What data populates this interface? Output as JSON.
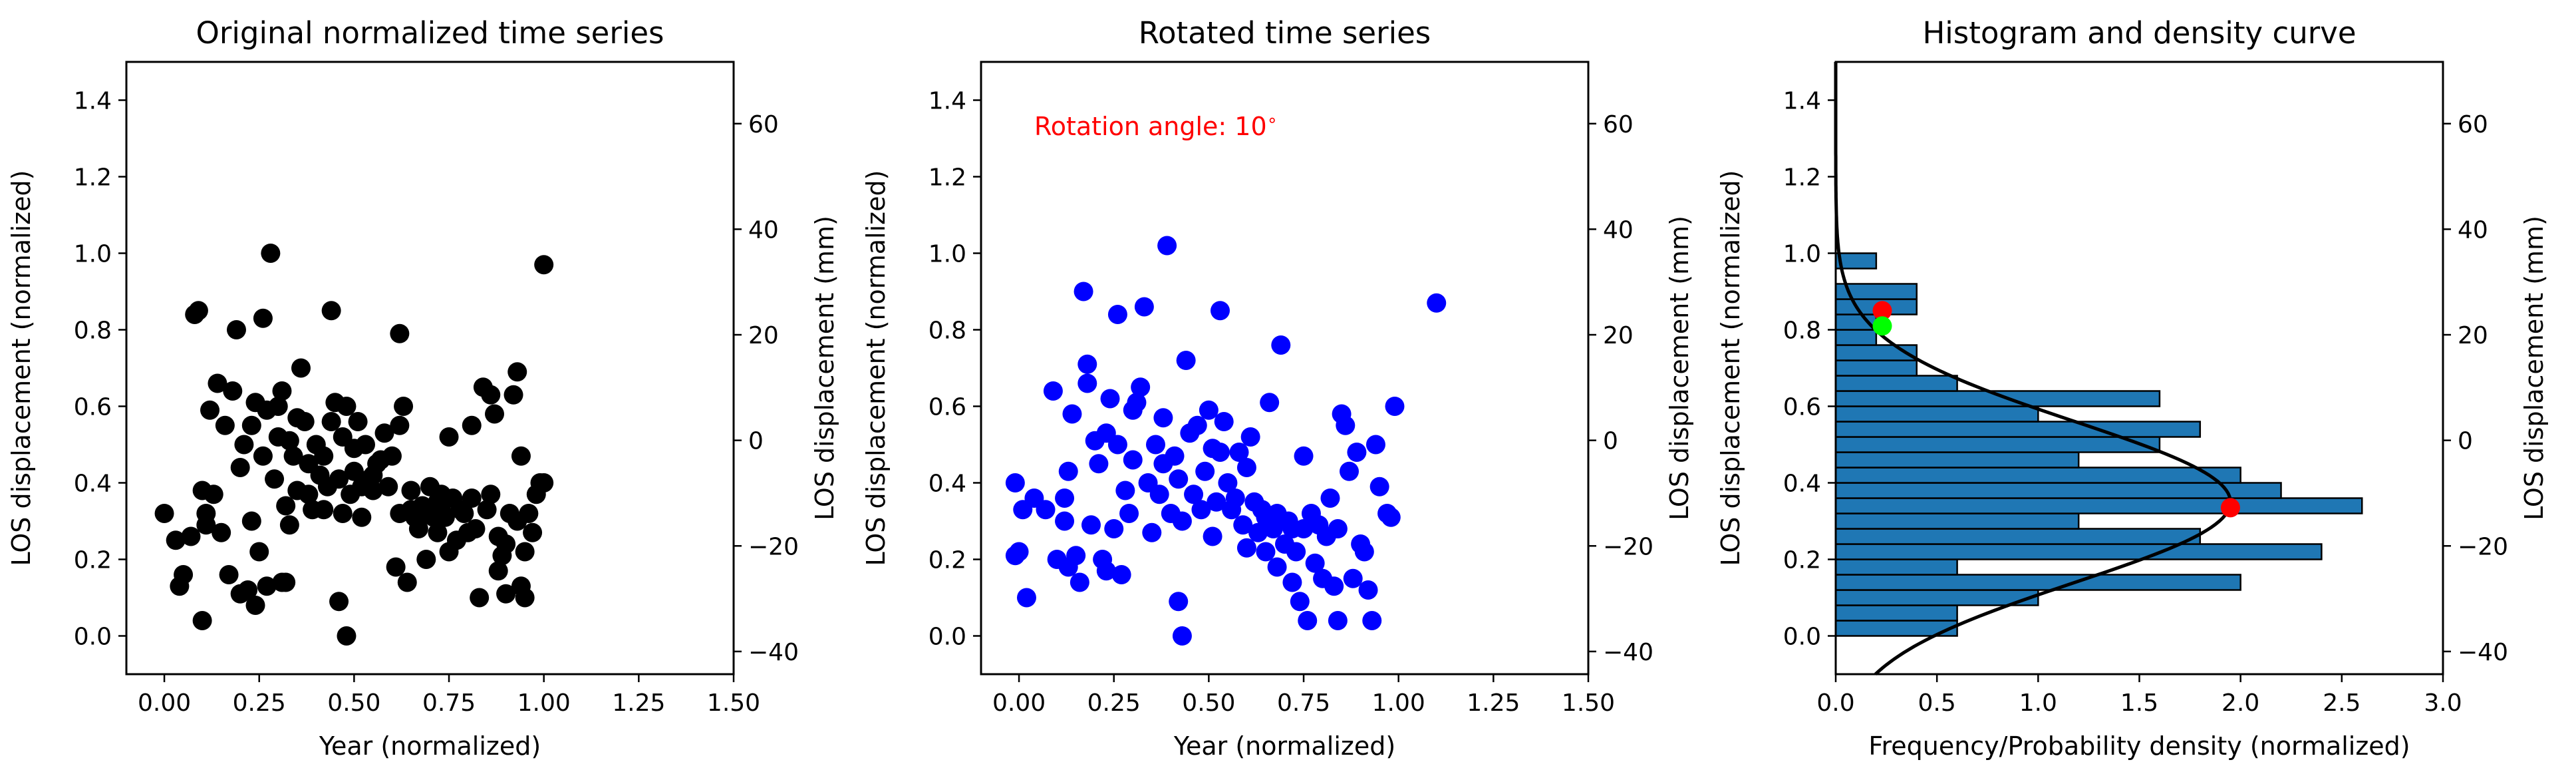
{
  "chart_data": [
    {
      "type": "scatter",
      "title": "Original normalized time series",
      "xlabel": "Year (normalized)",
      "ylabel": "LOS displacement (normalized)",
      "ylabel_right": "LOS displacement (mm)",
      "xlim": [
        -0.1,
        1.5
      ],
      "ylim": [
        -0.1,
        1.5
      ],
      "ylim_right": [
        -44.3,
        71.7
      ],
      "x_ticks": [
        "0.00",
        "0.25",
        "0.50",
        "0.75",
        "1.00",
        "1.25",
        "1.50"
      ],
      "x_tick_values": [
        0,
        0.25,
        0.5,
        0.75,
        1.0,
        1.25,
        1.5
      ],
      "y_ticks": [
        "0.0",
        "0.2",
        "0.4",
        "0.6",
        "0.8",
        "1.0",
        "1.2",
        "1.4"
      ],
      "y_tick_values": [
        0,
        0.2,
        0.4,
        0.6,
        0.8,
        1.0,
        1.2,
        1.4
      ],
      "y2_ticks": [
        "−40",
        "−20",
        "0",
        "20",
        "40",
        "60"
      ],
      "y2_tick_values": [
        -40,
        -20,
        0,
        20,
        40,
        60
      ],
      "marker_color": "#000000",
      "points": [
        [
          0.0,
          0.32
        ],
        [
          0.03,
          0.25
        ],
        [
          0.04,
          0.13
        ],
        [
          0.05,
          0.16
        ],
        [
          0.07,
          0.26
        ],
        [
          0.08,
          0.84
        ],
        [
          0.09,
          0.85
        ],
        [
          0.1,
          0.04
        ],
        [
          0.1,
          0.38
        ],
        [
          0.11,
          0.29
        ],
        [
          0.11,
          0.32
        ],
        [
          0.12,
          0.59
        ],
        [
          0.13,
          0.37
        ],
        [
          0.14,
          0.66
        ],
        [
          0.15,
          0.27
        ],
        [
          0.16,
          0.55
        ],
        [
          0.17,
          0.16
        ],
        [
          0.18,
          0.64
        ],
        [
          0.19,
          0.8
        ],
        [
          0.2,
          0.11
        ],
        [
          0.2,
          0.44
        ],
        [
          0.21,
          0.5
        ],
        [
          0.22,
          0.12
        ],
        [
          0.23,
          0.3
        ],
        [
          0.23,
          0.55
        ],
        [
          0.24,
          0.08
        ],
        [
          0.24,
          0.61
        ],
        [
          0.25,
          0.22
        ],
        [
          0.26,
          0.47
        ],
        [
          0.26,
          0.83
        ],
        [
          0.27,
          0.13
        ],
        [
          0.27,
          0.59
        ],
        [
          0.28,
          1.0
        ],
        [
          0.29,
          0.41
        ],
        [
          0.3,
          0.52
        ],
        [
          0.3,
          0.6
        ],
        [
          0.31,
          0.14
        ],
        [
          0.31,
          0.64
        ],
        [
          0.32,
          0.14
        ],
        [
          0.32,
          0.34
        ],
        [
          0.33,
          0.29
        ],
        [
          0.33,
          0.51
        ],
        [
          0.34,
          0.47
        ],
        [
          0.35,
          0.38
        ],
        [
          0.35,
          0.57
        ],
        [
          0.36,
          0.7
        ],
        [
          0.37,
          0.56
        ],
        [
          0.38,
          0.37
        ],
        [
          0.38,
          0.45
        ],
        [
          0.39,
          0.33
        ],
        [
          0.4,
          0.5
        ],
        [
          0.41,
          0.42
        ],
        [
          0.42,
          0.33
        ],
        [
          0.42,
          0.47
        ],
        [
          0.43,
          0.39
        ],
        [
          0.44,
          0.56
        ],
        [
          0.44,
          0.85
        ],
        [
          0.45,
          0.61
        ],
        [
          0.46,
          0.09
        ],
        [
          0.46,
          0.41
        ],
        [
          0.47,
          0.32
        ],
        [
          0.47,
          0.52
        ],
        [
          0.48,
          0.6
        ],
        [
          0.48,
          0.0
        ],
        [
          0.49,
          0.37
        ],
        [
          0.5,
          0.49
        ],
        [
          0.5,
          0.43
        ],
        [
          0.51,
          0.56
        ],
        [
          0.52,
          0.31
        ],
        [
          0.52,
          0.39
        ],
        [
          0.53,
          0.5
        ],
        [
          0.54,
          0.41
        ],
        [
          0.55,
          0.42
        ],
        [
          0.55,
          0.38
        ],
        [
          0.56,
          0.45
        ],
        [
          0.57,
          0.46
        ],
        [
          0.58,
          0.53
        ],
        [
          0.59,
          0.39
        ],
        [
          0.6,
          0.47
        ],
        [
          0.61,
          0.18
        ],
        [
          0.62,
          0.32
        ],
        [
          0.62,
          0.55
        ],
        [
          0.62,
          0.79
        ],
        [
          0.63,
          0.6
        ],
        [
          0.64,
          0.14
        ],
        [
          0.65,
          0.33
        ],
        [
          0.65,
          0.38
        ],
        [
          0.66,
          0.31
        ],
        [
          0.67,
          0.28
        ],
        [
          0.68,
          0.34
        ],
        [
          0.69,
          0.32
        ],
        [
          0.69,
          0.2
        ],
        [
          0.7,
          0.39
        ],
        [
          0.71,
          0.31
        ],
        [
          0.72,
          0.27
        ],
        [
          0.72,
          0.35
        ],
        [
          0.73,
          0.33
        ],
        [
          0.73,
          0.37
        ],
        [
          0.74,
          0.31
        ],
        [
          0.75,
          0.22
        ],
        [
          0.75,
          0.52
        ],
        [
          0.76,
          0.36
        ],
        [
          0.77,
          0.25
        ],
        [
          0.78,
          0.33
        ],
        [
          0.79,
          0.32
        ],
        [
          0.8,
          0.27
        ],
        [
          0.81,
          0.36
        ],
        [
          0.81,
          0.55
        ],
        [
          0.82,
          0.28
        ],
        [
          0.83,
          0.1
        ],
        [
          0.84,
          0.65
        ],
        [
          0.85,
          0.33
        ],
        [
          0.86,
          0.37
        ],
        [
          0.86,
          0.63
        ],
        [
          0.87,
          0.58
        ],
        [
          0.88,
          0.26
        ],
        [
          0.88,
          0.17
        ],
        [
          0.89,
          0.21
        ],
        [
          0.9,
          0.24
        ],
        [
          0.9,
          0.11
        ],
        [
          0.91,
          0.32
        ],
        [
          0.92,
          0.63
        ],
        [
          0.93,
          0.3
        ],
        [
          0.93,
          0.69
        ],
        [
          0.94,
          0.13
        ],
        [
          0.94,
          0.47
        ],
        [
          0.95,
          0.1
        ],
        [
          0.95,
          0.22
        ],
        [
          0.96,
          0.32
        ],
        [
          0.97,
          0.27
        ],
        [
          0.98,
          0.37
        ],
        [
          0.99,
          0.4
        ],
        [
          1.0,
          0.97
        ],
        [
          1.0,
          0.4
        ]
      ]
    },
    {
      "type": "scatter",
      "title": "Rotated time series",
      "xlabel": "Year (normalized)",
      "ylabel": "LOS displacement (normalized)",
      "ylabel_right": "LOS displacement (mm)",
      "annotation": "Rotation angle: 10",
      "annotation_suffix": "∘",
      "annotation_color": "#ff0000",
      "xlim": [
        -0.1,
        1.5
      ],
      "ylim": [
        -0.1,
        1.5
      ],
      "ylim_right": [
        -44.3,
        71.7
      ],
      "x_ticks": [
        "0.00",
        "0.25",
        "0.50",
        "0.75",
        "1.00",
        "1.25",
        "1.50"
      ],
      "x_tick_values": [
        0,
        0.25,
        0.5,
        0.75,
        1.0,
        1.25,
        1.5
      ],
      "y_ticks": [
        "0.0",
        "0.2",
        "0.4",
        "0.6",
        "0.8",
        "1.0",
        "1.2",
        "1.4"
      ],
      "y_tick_values": [
        0,
        0.2,
        0.4,
        0.6,
        0.8,
        1.0,
        1.2,
        1.4
      ],
      "y2_ticks": [
        "−40",
        "−20",
        "0",
        "20",
        "40",
        "60"
      ],
      "y2_tick_values": [
        -40,
        -20,
        0,
        20,
        40,
        60
      ],
      "marker_color": "#0000ff",
      "points": [
        [
          -0.01,
          0.4
        ],
        [
          -0.01,
          0.21
        ],
        [
          0.0,
          0.22
        ],
        [
          0.01,
          0.33
        ],
        [
          0.02,
          0.1
        ],
        [
          0.04,
          0.36
        ],
        [
          0.07,
          0.33
        ],
        [
          0.09,
          0.64
        ],
        [
          0.1,
          0.2
        ],
        [
          0.12,
          0.36
        ],
        [
          0.12,
          0.3
        ],
        [
          0.13,
          0.18
        ],
        [
          0.13,
          0.43
        ],
        [
          0.14,
          0.58
        ],
        [
          0.15,
          0.21
        ],
        [
          0.16,
          0.14
        ],
        [
          0.17,
          0.9
        ],
        [
          0.18,
          0.66
        ],
        [
          0.18,
          0.71
        ],
        [
          0.19,
          0.29
        ],
        [
          0.2,
          0.51
        ],
        [
          0.21,
          0.45
        ],
        [
          0.22,
          0.2
        ],
        [
          0.23,
          0.53
        ],
        [
          0.23,
          0.17
        ],
        [
          0.24,
          0.62
        ],
        [
          0.25,
          0.28
        ],
        [
          0.26,
          0.5
        ],
        [
          0.26,
          0.84
        ],
        [
          0.27,
          0.16
        ],
        [
          0.28,
          0.38
        ],
        [
          0.29,
          0.32
        ],
        [
          0.3,
          0.59
        ],
        [
          0.3,
          0.46
        ],
        [
          0.31,
          0.61
        ],
        [
          0.32,
          0.65
        ],
        [
          0.33,
          0.86
        ],
        [
          0.34,
          0.4
        ],
        [
          0.35,
          0.27
        ],
        [
          0.36,
          0.5
        ],
        [
          0.37,
          0.37
        ],
        [
          0.38,
          0.45
        ],
        [
          0.38,
          0.57
        ],
        [
          0.39,
          1.02
        ],
        [
          0.4,
          0.32
        ],
        [
          0.41,
          0.47
        ],
        [
          0.42,
          0.09
        ],
        [
          0.42,
          0.41
        ],
        [
          0.43,
          0.0
        ],
        [
          0.43,
          0.3
        ],
        [
          0.44,
          0.72
        ],
        [
          0.45,
          0.53
        ],
        [
          0.46,
          0.37
        ],
        [
          0.47,
          0.55
        ],
        [
          0.48,
          0.33
        ],
        [
          0.49,
          0.43
        ],
        [
          0.5,
          0.59
        ],
        [
          0.51,
          0.49
        ],
        [
          0.51,
          0.26
        ],
        [
          0.52,
          0.35
        ],
        [
          0.53,
          0.85
        ],
        [
          0.53,
          0.48
        ],
        [
          0.54,
          0.56
        ],
        [
          0.55,
          0.4
        ],
        [
          0.56,
          0.33
        ],
        [
          0.57,
          0.36
        ],
        [
          0.58,
          0.48
        ],
        [
          0.59,
          0.29
        ],
        [
          0.6,
          0.44
        ],
        [
          0.6,
          0.23
        ],
        [
          0.61,
          0.52
        ],
        [
          0.62,
          0.35
        ],
        [
          0.63,
          0.27
        ],
        [
          0.64,
          0.33
        ],
        [
          0.65,
          0.22
        ],
        [
          0.65,
          0.31
        ],
        [
          0.66,
          0.61
        ],
        [
          0.67,
          0.28
        ],
        [
          0.68,
          0.18
        ],
        [
          0.68,
          0.32
        ],
        [
          0.69,
          0.76
        ],
        [
          0.7,
          0.24
        ],
        [
          0.71,
          0.3
        ],
        [
          0.72,
          0.14
        ],
        [
          0.72,
          0.28
        ],
        [
          0.73,
          0.22
        ],
        [
          0.74,
          0.09
        ],
        [
          0.75,
          0.47
        ],
        [
          0.75,
          0.28
        ],
        [
          0.76,
          0.04
        ],
        [
          0.77,
          0.32
        ],
        [
          0.78,
          0.19
        ],
        [
          0.79,
          0.29
        ],
        [
          0.8,
          0.15
        ],
        [
          0.81,
          0.26
        ],
        [
          0.82,
          0.36
        ],
        [
          0.83,
          0.13
        ],
        [
          0.84,
          0.28
        ],
        [
          0.84,
          0.04
        ],
        [
          0.85,
          0.58
        ],
        [
          0.86,
          0.55
        ],
        [
          0.87,
          0.43
        ],
        [
          0.88,
          0.15
        ],
        [
          0.89,
          0.48
        ],
        [
          0.9,
          0.24
        ],
        [
          0.91,
          0.22
        ],
        [
          0.92,
          0.12
        ],
        [
          0.93,
          0.04
        ],
        [
          0.94,
          0.5
        ],
        [
          0.95,
          0.39
        ],
        [
          0.97,
          0.32
        ],
        [
          0.98,
          0.31
        ],
        [
          0.99,
          0.6
        ],
        [
          1.1,
          0.87
        ]
      ]
    },
    {
      "type": "bar",
      "orientation": "horizontal",
      "title": "Histogram and density curve",
      "xlabel": "Frequency/Probability density (normalized)",
      "ylabel": "LOS displacement (normalized)",
      "ylabel_right": "LOS displacement (mm)",
      "xlim": [
        0,
        3.0
      ],
      "ylim": [
        -0.1,
        1.5
      ],
      "ylim_right": [
        -44.3,
        71.7
      ],
      "x_ticks": [
        "0.0",
        "0.5",
        "1.0",
        "1.5",
        "2.0",
        "2.5",
        "3.0"
      ],
      "x_tick_values": [
        0,
        0.5,
        1.0,
        1.5,
        2.0,
        2.5,
        3.0
      ],
      "y_ticks": [
        "0.0",
        "0.2",
        "0.4",
        "0.6",
        "0.8",
        "1.0",
        "1.2",
        "1.4"
      ],
      "y_tick_values": [
        0,
        0.2,
        0.4,
        0.6,
        0.8,
        1.0,
        1.2,
        1.4
      ],
      "y2_ticks": [
        "−40",
        "−20",
        "0",
        "20",
        "40",
        "60"
      ],
      "y2_tick_values": [
        -40,
        -20,
        0,
        20,
        40,
        60
      ],
      "bar_color": "#1f77b4",
      "bin_width": 0.04,
      "bins": [
        [
          0.0,
          0.6
        ],
        [
          0.04,
          0.6
        ],
        [
          0.08,
          1.0
        ],
        [
          0.12,
          2.0
        ],
        [
          0.16,
          0.6
        ],
        [
          0.2,
          2.4
        ],
        [
          0.24,
          1.8
        ],
        [
          0.28,
          1.2
        ],
        [
          0.32,
          2.6
        ],
        [
          0.36,
          2.2
        ],
        [
          0.4,
          2.0
        ],
        [
          0.44,
          1.2
        ],
        [
          0.48,
          1.6
        ],
        [
          0.52,
          1.8
        ],
        [
          0.56,
          1.0
        ],
        [
          0.6,
          1.6
        ],
        [
          0.64,
          0.6
        ],
        [
          0.68,
          0.4
        ],
        [
          0.72,
          0.4
        ],
        [
          0.76,
          0.2
        ],
        [
          0.8,
          0.2
        ],
        [
          0.84,
          0.4
        ],
        [
          0.88,
          0.4
        ],
        [
          0.96,
          0.2
        ]
      ],
      "density_curve": {
        "mean": 0.35,
        "sd": 0.21,
        "peak": 1.95
      },
      "markers": [
        {
          "x": 1.95,
          "y": 0.335,
          "color": "#ff0000"
        },
        {
          "x": 0.23,
          "y": 0.85,
          "color": "#ff0000"
        },
        {
          "x": 0.23,
          "y": 0.81,
          "color": "#00ff00"
        }
      ]
    }
  ]
}
